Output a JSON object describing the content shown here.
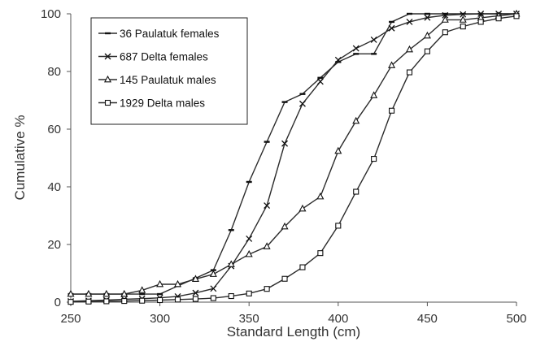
{
  "chart_data": {
    "type": "line",
    "title": "",
    "xlabel": "Standard Length (cm)",
    "ylabel": "Cumulative %",
    "xlim": [
      250,
      500
    ],
    "ylim": [
      0,
      100
    ],
    "x_ticks": [
      250,
      300,
      350,
      400,
      450,
      500
    ],
    "y_ticks": [
      0,
      20,
      40,
      60,
      80,
      100
    ],
    "grid": false,
    "legend_position": "top-left",
    "x": [
      250,
      260,
      270,
      280,
      290,
      300,
      310,
      320,
      330,
      340,
      350,
      360,
      370,
      380,
      390,
      400,
      410,
      420,
      430,
      440,
      450,
      460,
      470,
      480,
      490,
      500
    ],
    "series": [
      {
        "name": "36 Paulatuk females",
        "marker": "dash",
        "values": [
          2.8,
          2.8,
          2.8,
          2.8,
          2.8,
          2.8,
          5.6,
          8.3,
          11.1,
          25.0,
          41.7,
          55.6,
          69.4,
          72.2,
          77.8,
          83.3,
          86.1,
          86.1,
          97.2,
          100,
          100,
          100,
          100,
          100,
          100,
          100
        ]
      },
      {
        "name": "687 Delta females",
        "marker": "x",
        "values": [
          0.3,
          0.5,
          0.7,
          1.0,
          1.2,
          1.5,
          2.0,
          3.2,
          4.7,
          12.5,
          22.0,
          33.5,
          55.0,
          68.8,
          76.5,
          84.0,
          88.0,
          91.0,
          95.0,
          97.2,
          98.7,
          99.5,
          99.8,
          100,
          100,
          100
        ]
      },
      {
        "name": "145 Paulatuk males",
        "marker": "triangle",
        "values": [
          2.8,
          2.8,
          2.8,
          2.8,
          4.1,
          6.2,
          6.2,
          8.0,
          9.7,
          13.1,
          16.6,
          19.3,
          26.2,
          32.4,
          36.6,
          52.4,
          62.8,
          71.7,
          82.1,
          87.6,
          92.4,
          97.9,
          97.9,
          98.6,
          99.3,
          100
        ]
      },
      {
        "name": "1929 Delta males",
        "marker": "square",
        "values": [
          0.1,
          0.2,
          0.3,
          0.4,
          0.5,
          0.7,
          0.9,
          1.1,
          1.4,
          2.1,
          3.0,
          4.6,
          8.1,
          12.1,
          17.0,
          26.5,
          38.3,
          49.7,
          66.4,
          79.7,
          87.0,
          93.6,
          95.6,
          97.2,
          98.4,
          99.2
        ]
      }
    ]
  }
}
